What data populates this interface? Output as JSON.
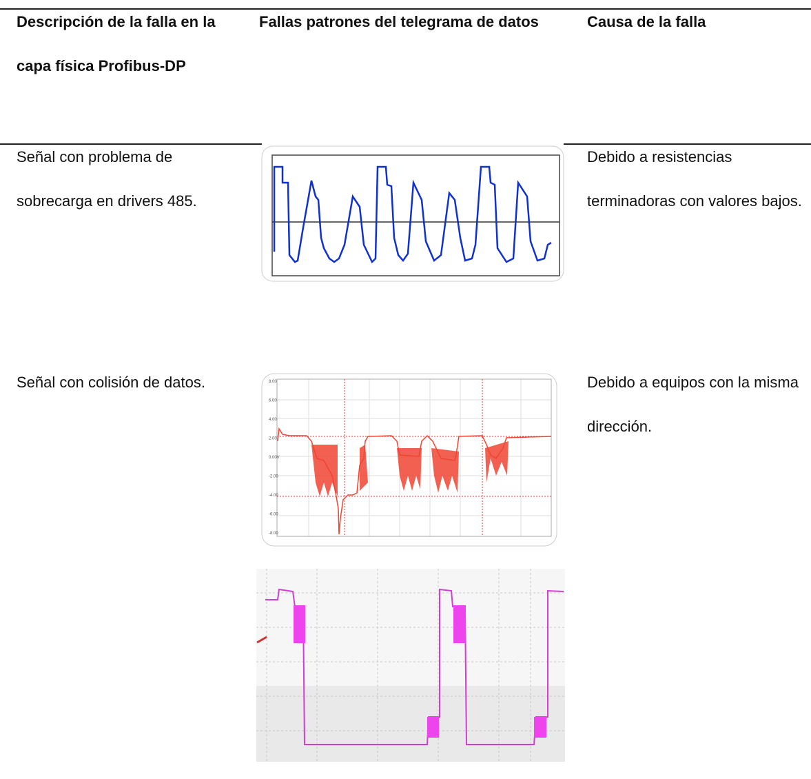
{
  "table": {
    "header": [
      "Descripción de la falla en la capa física Profibus-DP",
      "Fallas patrones del telegrama de datos",
      "Causa de la falla"
    ],
    "rows": [
      [
        "Señal con problema de sobrecarga en drivers 485.",
        "Debido a resistencias terminadoras con valores bajos."
      ],
      [
        "Señal con colisión de datos.",
        "Debido a equipos con la misma dirección."
      ]
    ]
  },
  "figures": [
    {
      "axis_labels": [
        "8.00",
        "6.00",
        "4.00",
        "2.00",
        "0.00V",
        "-2.00",
        "-4.00",
        "-6.00",
        "-8.00"
      ]
    }
  ]
}
